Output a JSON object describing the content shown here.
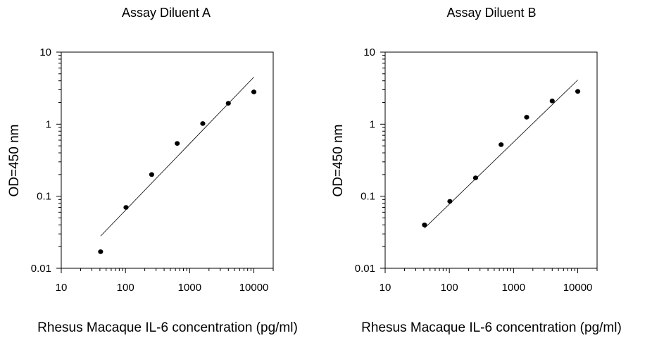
{
  "chart_data": [
    {
      "type": "scatter",
      "title": "Assay Diluent A",
      "xlabel": "Rhesus  Macaque IL-6 concentration (pg/ml)",
      "ylabel": "OD=450 nm",
      "xscale": "log",
      "yscale": "log",
      "xlim": [
        10,
        20000
      ],
      "ylim": [
        0.01,
        10
      ],
      "x_ticks": [
        "10",
        "100",
        "1000",
        "10000"
      ],
      "y_ticks": [
        "0.01",
        "0.1",
        "1",
        "10"
      ],
      "grid": false,
      "points": [
        {
          "x": 41,
          "y": 0.017
        },
        {
          "x": 102,
          "y": 0.07
        },
        {
          "x": 256,
          "y": 0.2
        },
        {
          "x": 640,
          "y": 0.54
        },
        {
          "x": 1600,
          "y": 1.02
        },
        {
          "x": 4000,
          "y": 1.95
        },
        {
          "x": 10000,
          "y": 2.8
        }
      ],
      "fit_line": [
        {
          "x": 41,
          "y": 0.028
        },
        {
          "x": 10000,
          "y": 4.5
        }
      ]
    },
    {
      "type": "scatter",
      "title": "Assay Diluent B",
      "xlabel": "Rhesus  Macaque IL-6 concentration (pg/ml)",
      "ylabel": "OD=450 nm",
      "xscale": "log",
      "yscale": "log",
      "xlim": [
        10,
        20000
      ],
      "ylim": [
        0.01,
        10
      ],
      "x_ticks": [
        "10",
        "100",
        "1000",
        "10000"
      ],
      "y_ticks": [
        "0.01",
        "0.1",
        "1",
        "10"
      ],
      "grid": false,
      "points": [
        {
          "x": 41,
          "y": 0.04
        },
        {
          "x": 102,
          "y": 0.085
        },
        {
          "x": 256,
          "y": 0.18
        },
        {
          "x": 640,
          "y": 0.52
        },
        {
          "x": 1600,
          "y": 1.25
        },
        {
          "x": 4000,
          "y": 2.1
        },
        {
          "x": 10000,
          "y": 2.85
        }
      ],
      "fit_line": [
        {
          "x": 41,
          "y": 0.036
        },
        {
          "x": 10000,
          "y": 4.1
        }
      ]
    }
  ]
}
